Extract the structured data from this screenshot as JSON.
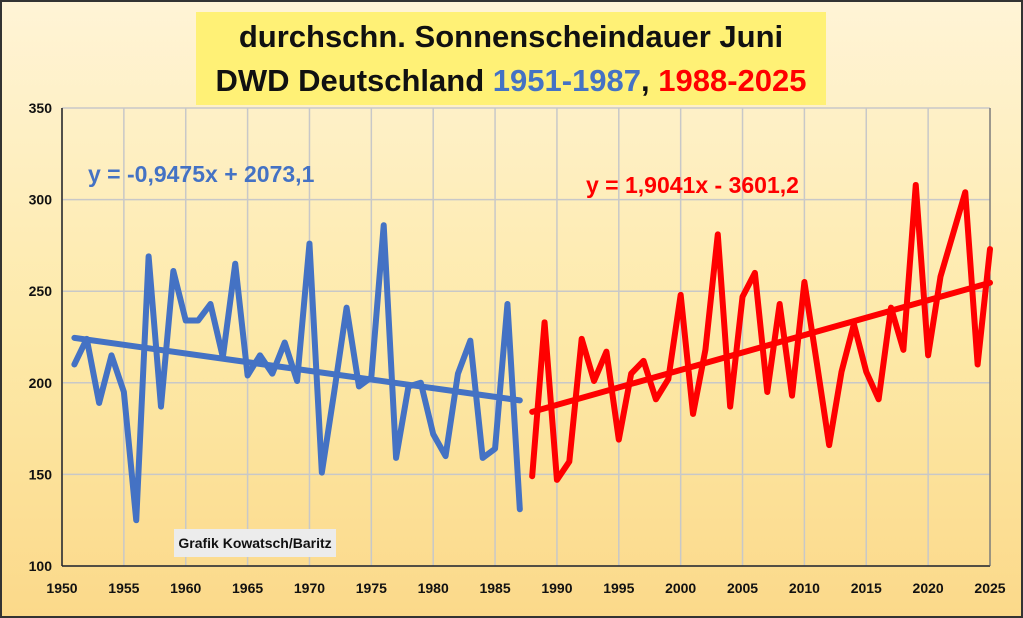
{
  "chart_data": {
    "type": "line",
    "title_line1": "durchschn. Sonnenscheindauer Juni",
    "title_line2_prefix": "DWD Deutschland ",
    "title_range1": "1951-1987",
    "title_sep": ", ",
    "title_range2": "1988-2025",
    "credit": "Grafik Kowatsch/Baritz",
    "xlim": [
      1950,
      2025
    ],
    "ylim": [
      100,
      350
    ],
    "x_ticks": [
      1950,
      1955,
      1960,
      1965,
      1970,
      1975,
      1980,
      1985,
      1990,
      1995,
      2000,
      2005,
      2010,
      2015,
      2020,
      2025
    ],
    "y_ticks": [
      100,
      150,
      200,
      250,
      300,
      350
    ],
    "grid": true,
    "series": [
      {
        "name": "1951-1987",
        "color": "#4472c4",
        "x_start": 1951,
        "values": [
          210,
          224,
          189,
          215,
          195,
          125,
          269,
          187,
          261,
          234,
          234,
          243,
          214,
          265,
          204,
          215,
          205,
          222,
          201,
          276,
          151,
          195,
          241,
          198,
          203,
          286,
          159,
          198,
          200,
          172,
          160,
          205,
          223,
          159,
          164,
          243,
          131
        ],
        "trend": {
          "label": "y = -0,9475x + 2073,1",
          "slope": -0.9475,
          "intercept": 2073.1
        }
      },
      {
        "name": "1988-2025",
        "color": "#ff0000",
        "x_start": 1988,
        "values": [
          149,
          233,
          147,
          157,
          224,
          201,
          217,
          169,
          205,
          212,
          191,
          202,
          248,
          183,
          218,
          281,
          187,
          247,
          260,
          195,
          243,
          193,
          255,
          211,
          166,
          206,
          232,
          206,
          191,
          241,
          218,
          308,
          215,
          258,
          281,
          304,
          210,
          273
        ],
        "trend": {
          "label": "y = 1,9041x - 3601,2",
          "slope": 1.9041,
          "intercept": -3601.2
        }
      }
    ]
  }
}
